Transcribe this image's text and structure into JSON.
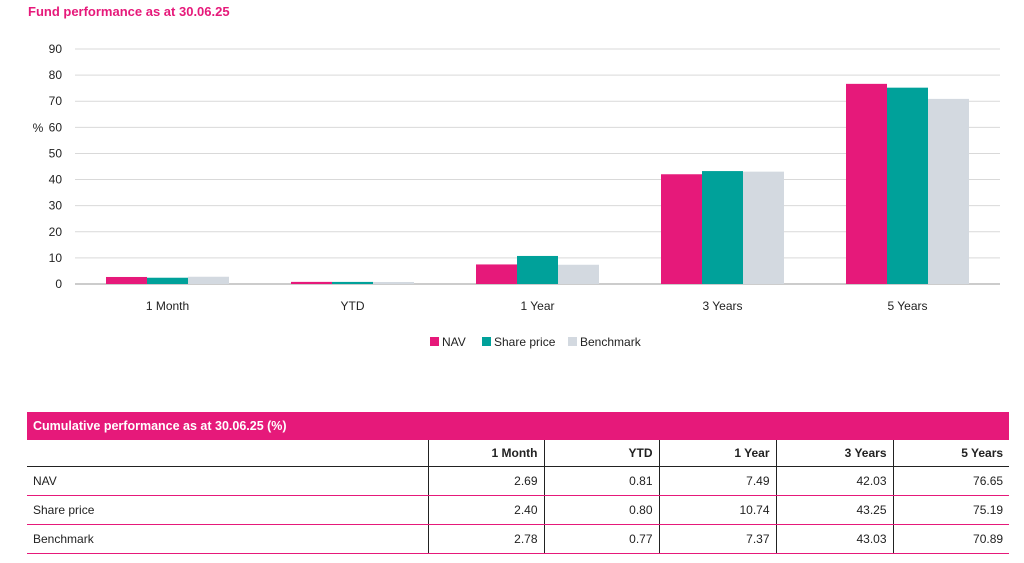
{
  "page": {
    "title": "Fund performance as at 30.06.25"
  },
  "chart_data": {
    "type": "bar",
    "title": "Fund performance as at 30.06.25",
    "ylabel": "%",
    "xlabel": "",
    "ylim": [
      0,
      90
    ],
    "yticks": [
      0,
      10,
      20,
      30,
      40,
      50,
      60,
      70,
      80,
      90
    ],
    "grid": true,
    "legend_position": "bottom",
    "categories": [
      "1 Month",
      "YTD",
      "1 Year",
      "3 Years",
      "5 Years"
    ],
    "series": [
      {
        "name": "NAV",
        "color": "#e6197a",
        "values": [
          2.69,
          0.81,
          7.49,
          42.03,
          76.65
        ]
      },
      {
        "name": "Share price",
        "color": "#00a19a",
        "values": [
          2.4,
          0.8,
          10.74,
          43.25,
          75.19
        ]
      },
      {
        "name": "Benchmark",
        "color": "#d3d9e0",
        "values": [
          2.78,
          0.77,
          7.37,
          43.03,
          70.89
        ]
      }
    ]
  },
  "table": {
    "title": "Cumulative performance as at 30.06.25 (%)",
    "columns": [
      "",
      "1 Month",
      "YTD",
      "1 Year",
      "3 Years",
      "5 Years"
    ],
    "rows": [
      {
        "label": "NAV",
        "values": [
          "2.69",
          "0.81",
          "7.49",
          "42.03",
          "76.65"
        ]
      },
      {
        "label": "Share price",
        "values": [
          "2.40",
          "0.80",
          "10.74",
          "43.25",
          "75.19"
        ]
      },
      {
        "label": "Benchmark",
        "values": [
          "2.78",
          "0.77",
          "7.37",
          "43.03",
          "70.89"
        ]
      }
    ]
  }
}
